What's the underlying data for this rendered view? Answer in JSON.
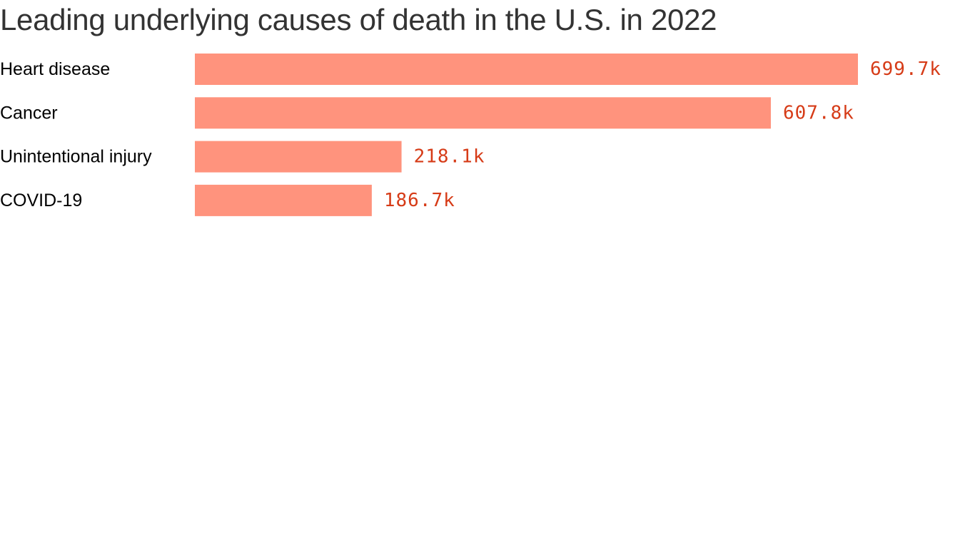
{
  "chart_data": {
    "type": "bar",
    "orientation": "horizontal",
    "title": "Leading underlying causes of death in the U.S. in 2022",
    "categories": [
      "Heart disease",
      "Cancer",
      "Unintentional injury",
      "COVID-19"
    ],
    "values": [
      699.7,
      607.8,
      218.1,
      186.7
    ],
    "value_labels": [
      "699.7k",
      "607.8k",
      "218.1k",
      "186.7k"
    ],
    "xlim": [
      0,
      699.7
    ],
    "grid": false,
    "legend": "none",
    "colors": {
      "bar": "#ff937d",
      "value_label": "#d63b17",
      "category_label": "#000000",
      "title": "#333333"
    }
  }
}
